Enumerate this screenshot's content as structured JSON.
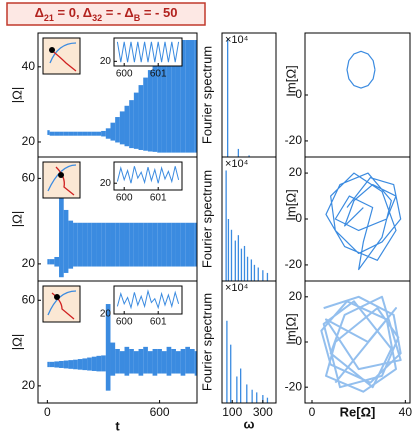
{
  "title_parts": [
    "Δ",
    "21",
    " = 0, Δ",
    "32",
    " = - Δ",
    "B",
    " = - 50"
  ],
  "chart_data": [
    {
      "type": "band",
      "ylabel": "|Ω|",
      "color": "#3b8be0",
      "x": [
        0,
        25,
        50,
        75,
        100,
        125,
        150,
        175,
        200,
        225,
        250,
        275,
        300,
        325,
        350,
        375,
        400,
        425,
        450,
        475,
        500,
        525,
        550,
        575,
        600,
        625,
        650,
        675,
        700,
        725,
        750,
        775,
        800
      ],
      "high": [
        23,
        22.6,
        22.6,
        22.6,
        22.6,
        22.6,
        22.6,
        22.6,
        22.6,
        22.6,
        22.6,
        22.6,
        22.8,
        23.5,
        25,
        26.5,
        28,
        29.5,
        31,
        33,
        35,
        37,
        39,
        41,
        43,
        45,
        46,
        46.5,
        47,
        47,
        47,
        47,
        47
      ],
      "low": [
        22,
        21.8,
        21.8,
        21.8,
        21.8,
        21.8,
        21.8,
        21.8,
        21.8,
        21.8,
        21.8,
        21.8,
        21.6,
        21,
        20.5,
        20,
        19.5,
        19,
        18.5,
        18.3,
        18,
        17.8,
        17.6,
        17.5,
        17.3,
        17.3,
        17.3,
        17.3,
        17.3,
        17.3,
        17.3,
        17.3,
        17.3
      ],
      "xlim": [
        -50,
        800
      ],
      "ylim": [
        16,
        49
      ],
      "yticks": [
        20,
        40
      ],
      "inset": {
        "x": [
          599.8,
          599.9,
          600,
          600.1,
          600.2,
          600.3,
          600.4,
          600.5,
          600.6,
          600.7,
          600.8,
          600.9,
          601,
          601.1,
          601.2,
          601.3,
          601.4,
          601.5,
          601.6
        ],
        "values": [
          45,
          19,
          45,
          19,
          45,
          19,
          45,
          19,
          45,
          19,
          45,
          19,
          45,
          19,
          45,
          19,
          45,
          19,
          45
        ],
        "xlim": [
          599.7,
          601.7
        ],
        "ylim": [
          14,
          50
        ],
        "xticks": [
          600,
          601
        ],
        "yticks": [
          20
        ]
      }
    },
    {
      "type": "stem",
      "ylabel": "Fourier spectrum",
      "multiplier": "×10⁴",
      "color": "#3b8be0",
      "x": [
        70,
        140,
        210
      ],
      "values": [
        4.4,
        0.3,
        0.06
      ],
      "xlim": [
        33,
        386
      ],
      "ylim": [
        0,
        4.6
      ]
    },
    {
      "type": "line",
      "ylabel": "Im[Ω]",
      "color": "#3b8be0",
      "x": [
        27,
        26.2,
        24,
        21,
        18,
        15.8,
        15,
        15.8,
        18,
        21,
        24,
        26.2,
        27
      ],
      "values": [
        11,
        15,
        17.9,
        19,
        17.9,
        15,
        11,
        7,
        4.1,
        3,
        4.1,
        7,
        11
      ],
      "xlim": [
        -3,
        42
      ],
      "ylim": [
        -27,
        27
      ],
      "yticks": [
        0,
        -20
      ]
    },
    {
      "type": "band",
      "ylabel": "|Ω|",
      "color": "#3b8be0",
      "x": [
        0,
        25,
        50,
        75,
        100,
        125,
        150,
        175,
        200,
        225,
        250,
        275,
        300,
        325,
        350,
        375,
        400,
        425,
        450,
        475,
        500,
        525,
        550,
        575,
        600,
        625,
        650,
        675,
        700,
        725,
        750,
        775,
        800
      ],
      "high": [
        22,
        22,
        23,
        58,
        45,
        40,
        39,
        39,
        39,
        39,
        39,
        39,
        39,
        39,
        39,
        39,
        39,
        39,
        39,
        39,
        39,
        39,
        39,
        39,
        39,
        39,
        39,
        39,
        39,
        39,
        39,
        39,
        39
      ],
      "low": [
        20,
        20,
        19,
        14,
        16,
        18,
        19,
        19,
        19,
        19,
        19,
        19,
        19,
        19,
        19,
        19,
        19,
        19,
        19,
        19,
        19,
        19,
        19,
        19,
        19,
        19,
        19,
        19,
        19,
        19,
        19,
        19,
        19
      ],
      "xlim": [
        -50,
        800
      ],
      "ylim": [
        12,
        70
      ],
      "yticks": [
        20,
        60
      ],
      "inset": {
        "x": [
          599.8,
          599.9,
          600,
          600.1,
          600.2,
          600.3,
          600.4,
          600.5,
          600.6,
          600.7,
          600.8,
          600.9,
          601,
          601.1,
          601.2,
          601.3,
          601.4,
          601.5,
          601.6
        ],
        "values": [
          22,
          38,
          24,
          35,
          20,
          40,
          26,
          33,
          21,
          39,
          23,
          36,
          20,
          38,
          25,
          34,
          22,
          40,
          24
        ],
        "xlim": [
          599.7,
          601.7
        ],
        "ylim": [
          12,
          45
        ],
        "xticks": [
          600,
          601
        ],
        "yticks": [
          20
        ]
      }
    },
    {
      "type": "stem",
      "ylabel": "Fourier spectrum",
      "multiplier": "×10⁴",
      "color": "#3b8be0",
      "x": [
        60,
        75,
        95,
        120,
        140,
        160,
        180,
        200,
        225,
        245,
        270,
        300,
        330
      ],
      "values": [
        4.1,
        2.3,
        1.9,
        1.5,
        1.7,
        1.2,
        1.3,
        0.9,
        0.8,
        0.6,
        0.5,
        0.4,
        0.3
      ],
      "xlim": [
        33,
        386
      ],
      "ylim": [
        0,
        4.6
      ]
    },
    {
      "type": "line",
      "ylabel": "Im[Ω]",
      "color": "#3b8be0",
      "x": [
        15,
        25,
        35,
        38,
        30,
        20,
        10,
        8,
        18,
        30,
        36,
        28,
        14,
        6,
        12,
        24,
        34,
        30,
        20,
        22,
        26,
        16,
        10,
        20,
        32,
        36,
        26,
        18,
        14,
        22
      ],
      "values": [
        5,
        18,
        15,
        0,
        -10,
        -15,
        -5,
        10,
        20,
        12,
        -5,
        -18,
        -12,
        2,
        15,
        20,
        8,
        -8,
        -22,
        -10,
        5,
        10,
        0,
        -5,
        0,
        10,
        15,
        8,
        -3,
        5
      ],
      "xlim": [
        -3,
        42
      ],
      "ylim": [
        -27,
        27
      ],
      "yticks": [
        20,
        0,
        -20
      ]
    },
    {
      "type": "band",
      "ylabel": "|Ω|",
      "xlabel": "t",
      "color": "#3b8be0",
      "x": [
        0,
        25,
        50,
        75,
        100,
        125,
        150,
        175,
        200,
        225,
        250,
        275,
        300,
        325,
        350,
        375,
        400,
        425,
        450,
        475,
        500,
        525,
        550,
        575,
        600,
        625,
        650,
        675,
        700,
        725,
        750,
        775,
        800
      ],
      "high": [
        31,
        31,
        31.2,
        31.4,
        31.6,
        31.8,
        32,
        32.3,
        32.6,
        33,
        33.4,
        33.8,
        34,
        58,
        40,
        37,
        36,
        38,
        37,
        36,
        37,
        38,
        36,
        37,
        37,
        36,
        38,
        37,
        36,
        37,
        38,
        37,
        36
      ],
      "low": [
        29,
        29,
        28.8,
        28.6,
        28.4,
        28.2,
        28,
        27.8,
        27.6,
        27.4,
        27.2,
        27,
        27,
        18,
        25,
        26,
        26,
        25,
        26,
        26,
        25,
        26,
        26,
        25,
        26,
        26,
        25,
        26,
        26,
        25,
        26,
        26,
        25
      ],
      "xlim": [
        -50,
        800
      ],
      "ylim": [
        12,
        69
      ],
      "yticks": [
        20,
        60
      ],
      "xticks": [
        0,
        600
      ],
      "inset": {
        "x": [
          599.8,
          599.9,
          600,
          600.1,
          600.2,
          600.3,
          600.4,
          600.5,
          600.6,
          600.7,
          600.8,
          600.9,
          601,
          601.1,
          601.2,
          601.3,
          601.4,
          601.5,
          601.6
        ],
        "values": [
          26,
          36,
          28,
          33,
          25,
          37,
          27,
          34,
          26,
          38,
          29,
          32,
          25,
          36,
          27,
          35,
          26,
          37,
          28
        ],
        "xlim": [
          599.7,
          601.7
        ],
        "ylim": [
          20,
          42
        ],
        "xticks": [
          600,
          601
        ],
        "yticks": [
          20
        ]
      }
    },
    {
      "type": "stem",
      "ylabel": "Fourier spectrum",
      "xlabel": "ω",
      "multiplier": "×10⁴",
      "color": "#3b8be0",
      "x": [
        65,
        90,
        130,
        155,
        195,
        230,
        260,
        300,
        330
      ],
      "values": [
        3.1,
        2.2,
        1.0,
        1.3,
        0.7,
        0.5,
        0.4,
        0.3,
        0.2
      ],
      "xlim": [
        33,
        386
      ],
      "ylim": [
        0,
        4.6
      ],
      "xticks": [
        100,
        300
      ]
    },
    {
      "type": "line",
      "ylabel": "Im[Ω]",
      "xlabel": "Re[Ω]",
      "color": "#3b8be0",
      "opacity": 0.55,
      "x": [
        5,
        20,
        35,
        38,
        25,
        8,
        4,
        15,
        32,
        36,
        22,
        6,
        10,
        28,
        37,
        30,
        12,
        5,
        18,
        34,
        26,
        8,
        14,
        30,
        38,
        20,
        6,
        24,
        36,
        10
      ],
      "values": [
        15,
        20,
        12,
        -5,
        -18,
        -10,
        5,
        18,
        10,
        -12,
        -22,
        -15,
        0,
        15,
        2,
        -15,
        -20,
        8,
        18,
        -3,
        -20,
        -5,
        12,
        20,
        -8,
        -12,
        10,
        0,
        15,
        -18
      ],
      "xlim": [
        -3,
        42
      ],
      "ylim": [
        -27,
        27
      ],
      "yticks": [
        20,
        0,
        -20
      ],
      "xticks": [
        0,
        40
      ]
    }
  ]
}
